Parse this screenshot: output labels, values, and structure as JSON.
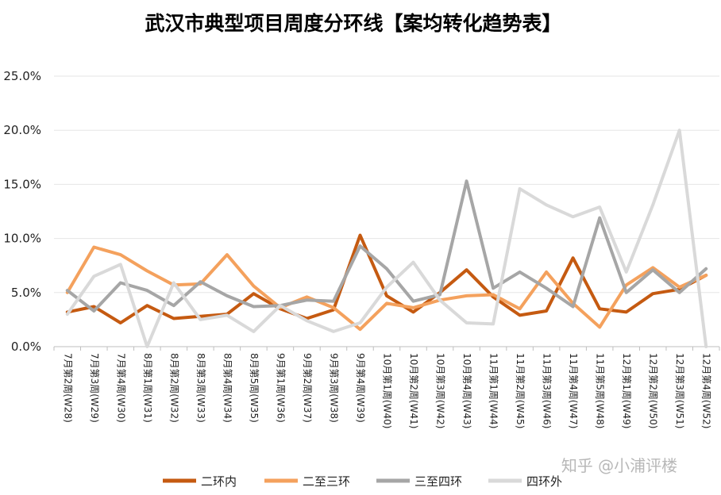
{
  "chart_data": {
    "type": "line",
    "title": "武汉市典型项目周度分环线【案均转化趋势表】",
    "xlabel": "",
    "ylabel": "",
    "ylim": [
      0,
      25
    ],
    "yticks": [
      "0.0%",
      "5.0%",
      "10.0%",
      "15.0%",
      "20.0%",
      "25.0%"
    ],
    "grid": true,
    "legend_position": "bottom",
    "categories": [
      "7月第2周(W28)",
      "7月第3周(W29)",
      "7月第4周(W30)",
      "8月第1周(W31)",
      "8月第2周(W32)",
      "8月第3周(W33)",
      "8月第4周(W34)",
      "8月第5周(W35)",
      "9月第1周(W36)",
      "9月第2周(W37)",
      "9月第3周(W38)",
      "9月第4周(W39)",
      "10月第1周(W40)",
      "10月第2周(W41)",
      "10月第3周(W42)",
      "10月第4周(W43)",
      "11月第1周(W44)",
      "11月第2周(W45)",
      "11月第3周(W46)",
      "11月第4周(W47)",
      "11月第5周(W48)",
      "12月第1周(W49)",
      "12月第2周(W50)",
      "12月第3周(W51)",
      "12月第4周(W52)"
    ],
    "series": [
      {
        "name": "二环内",
        "color": "#c55a11",
        "values": [
          3.2,
          3.7,
          2.2,
          3.8,
          2.6,
          2.8,
          3.0,
          4.9,
          3.5,
          2.6,
          3.4,
          10.3,
          4.7,
          3.2,
          5.0,
          7.1,
          4.6,
          2.9,
          3.3,
          8.2,
          3.5,
          3.2,
          4.9,
          5.3,
          6.6
        ]
      },
      {
        "name": "二至三环",
        "color": "#f4a15d",
        "values": [
          5.0,
          9.2,
          8.5,
          7.0,
          5.7,
          5.8,
          8.5,
          5.6,
          3.6,
          4.6,
          3.6,
          1.6,
          4.0,
          3.6,
          4.3,
          4.7,
          4.8,
          3.5,
          6.9,
          4.0,
          1.8,
          5.7,
          7.3,
          5.5,
          6.6
        ]
      },
      {
        "name": "三至四环",
        "color": "#a6a6a6",
        "values": [
          5.2,
          3.3,
          5.9,
          5.2,
          3.8,
          6.0,
          4.7,
          3.7,
          3.8,
          4.3,
          4.2,
          9.3,
          7.2,
          4.2,
          4.8,
          15.3,
          5.4,
          6.9,
          5.4,
          3.7,
          11.9,
          5.0,
          7.1,
          5.0,
          7.2
        ]
      },
      {
        "name": "四环外",
        "color": "#d9d9d9",
        "values": [
          3.0,
          6.5,
          7.6,
          0.0,
          5.9,
          2.5,
          2.9,
          1.4,
          3.8,
          2.4,
          1.4,
          2.2,
          5.5,
          7.8,
          4.3,
          2.2,
          2.1,
          14.6,
          13.1,
          12.0,
          12.9,
          6.9,
          13.1,
          20.0,
          0.0
        ]
      }
    ]
  },
  "watermark": "知乎 @小浦评楼"
}
